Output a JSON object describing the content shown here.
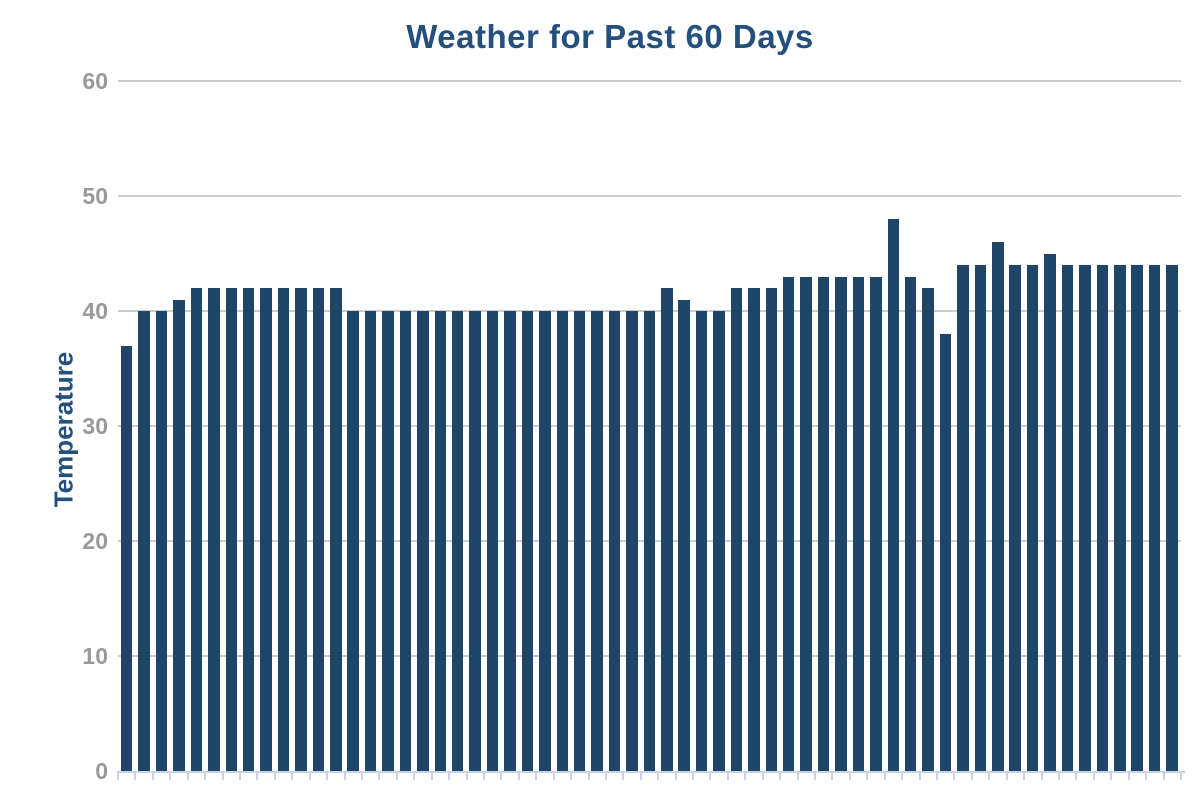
{
  "chart_data": {
    "type": "bar",
    "title": "Weather for Past 60 Days",
    "xlabel": "",
    "ylabel": "Temperature",
    "categories": null,
    "x_tick_labels_visible": false,
    "values": [
      37,
      40,
      40,
      41,
      42,
      42,
      42,
      42,
      42,
      42,
      42,
      42,
      42,
      40,
      40,
      40,
      40,
      40,
      40,
      40,
      40,
      40,
      40,
      40,
      40,
      40,
      40,
      40,
      40,
      40,
      40,
      42,
      41,
      40,
      40,
      42,
      42,
      42,
      43,
      43,
      43,
      43,
      43,
      43,
      48,
      43,
      42,
      38,
      44,
      44,
      46,
      44,
      44,
      45,
      44,
      44,
      44,
      44,
      44,
      44,
      44
    ],
    "ylim": [
      0,
      60
    ],
    "yticks": [
      0,
      10,
      20,
      30,
      40,
      50,
      60
    ],
    "grid": "horizontal",
    "legend": "none",
    "colors": {
      "bar": "#1f4568",
      "title": "#25507d",
      "axis_title": "#25507d",
      "tick_label": "#999999",
      "gridline": "#cccccc",
      "baseline": "#c7d3e5",
      "x_tick": "#c7d3e5",
      "background": "#ffffff"
    }
  }
}
